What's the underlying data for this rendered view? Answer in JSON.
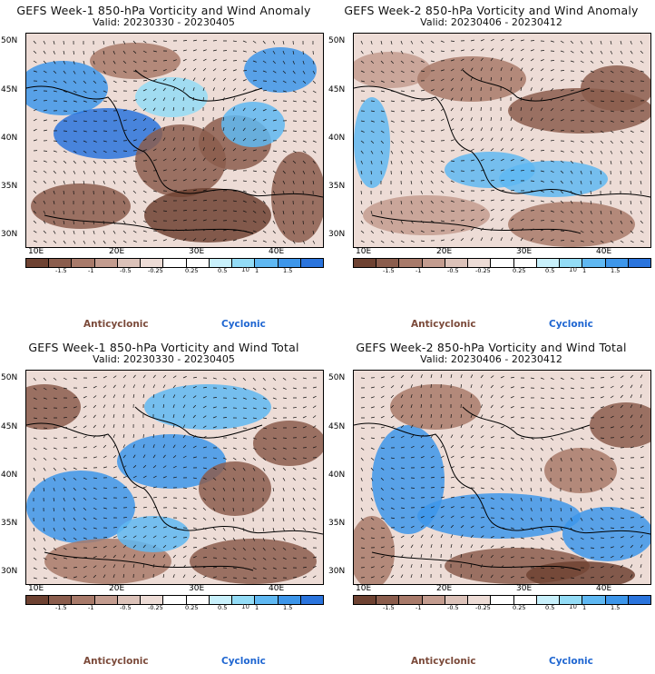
{
  "panels": [
    {
      "title": "GEFS Week-1 850-hPa Vorticity and Wind Anomaly",
      "valid": "Valid: 20230330 - 20230405",
      "variant": 0
    },
    {
      "title": "GEFS Week-2 850-hPa Vorticity and Wind Anomaly",
      "valid": "Valid: 20230406 - 20230412",
      "variant": 1
    },
    {
      "title": "GEFS Week-1 850-hPa Vorticity and Wind Total",
      "valid": "Valid: 20230330 - 20230405",
      "variant": 2
    },
    {
      "title": "GEFS Week-2 850-hPa Vorticity and Wind Total",
      "valid": "Valid: 20230406 - 20230412",
      "variant": 3
    }
  ],
  "axes": {
    "lat_labels": [
      "50N",
      "45N",
      "40N",
      "35N",
      "30N"
    ],
    "lon_labels": [
      "10E",
      "20E",
      "30E",
      "40E"
    ]
  },
  "colorbar": {
    "labels": [
      "-1.5",
      "-1",
      "-0.5",
      "-0.25",
      "0.25",
      "0.5",
      "1",
      "1.5"
    ],
    "scale_note": "10",
    "colors": [
      "#6e4232",
      "#8b5d4d",
      "#a87a6a",
      "#c39c8f",
      "#dcc2b9",
      "#eddcd6",
      "#ffffff",
      "#ffffff",
      "#c8f0fb",
      "#93dcf6",
      "#5fb8f2",
      "#3d96ea",
      "#2a74dd"
    ]
  },
  "legend": {
    "anticyclonic": "Anticyclonic",
    "cyclonic": "Cyclonic"
  },
  "colors": {
    "anticyclonic": "#7b4a3a",
    "cyclonic": "#1f66d1"
  }
}
